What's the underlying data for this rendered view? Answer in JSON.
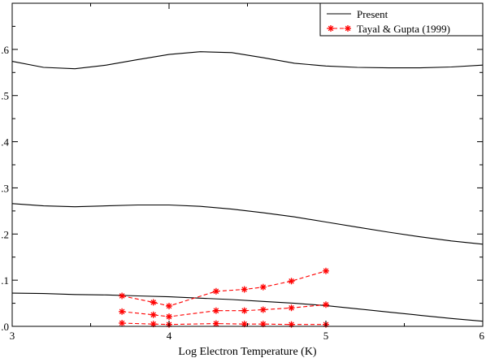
{
  "chart_data": {
    "type": "line",
    "title": "",
    "xlabel": "Log Electron Temperature (K)",
    "ylabel": "",
    "xlim": [
      3,
      6
    ],
    "ylim": [
      0,
      0.7
    ],
    "xticks": [
      3,
      4,
      5,
      6
    ],
    "yticks": [
      0,
      0.1,
      0.2,
      0.3,
      0.4,
      0.5,
      0.6
    ],
    "ytick_labels": [
      ".0",
      ".1",
      ".2",
      ".3",
      ".4",
      ".5",
      ".6"
    ],
    "grid": false,
    "legend_position": "top-right",
    "legend": [
      {
        "label": "Present",
        "color": "#000000",
        "style": "solid",
        "marker": "none"
      },
      {
        "label": "Tayal & Gupta (1999)",
        "color": "#ff0000",
        "style": "dashed",
        "marker": "asterisk"
      }
    ],
    "series": [
      {
        "name": "Present",
        "group": 0,
        "color": "#000000",
        "style": "solid",
        "marker": "none",
        "x": [
          3.0,
          3.2,
          3.4,
          3.6,
          3.8,
          4.0,
          4.2,
          4.4,
          4.6,
          4.8,
          5.0,
          5.2,
          5.4,
          5.6,
          5.8,
          6.0
        ],
        "y": [
          0.574,
          0.561,
          0.558,
          0.566,
          0.578,
          0.589,
          0.595,
          0.593,
          0.582,
          0.57,
          0.564,
          0.561,
          0.56,
          0.56,
          0.562,
          0.566
        ]
      },
      {
        "name": "Present",
        "group": 0,
        "color": "#000000",
        "style": "solid",
        "marker": "none",
        "x": [
          3.0,
          3.2,
          3.4,
          3.6,
          3.8,
          4.0,
          4.2,
          4.4,
          4.6,
          4.8,
          5.0,
          5.2,
          5.4,
          5.6,
          5.8,
          6.0
        ],
        "y": [
          0.266,
          0.261,
          0.259,
          0.261,
          0.263,
          0.263,
          0.26,
          0.254,
          0.246,
          0.237,
          0.226,
          0.215,
          0.204,
          0.194,
          0.185,
          0.178
        ]
      },
      {
        "name": "Present",
        "group": 0,
        "color": "#000000",
        "style": "solid",
        "marker": "none",
        "x": [
          3.0,
          3.2,
          3.4,
          3.6,
          3.8,
          4.0,
          4.2,
          4.4,
          4.6,
          4.8,
          5.0,
          5.2,
          5.4,
          5.6,
          5.8,
          6.0
        ],
        "y": [
          0.072,
          0.071,
          0.069,
          0.068,
          0.066,
          0.064,
          0.061,
          0.058,
          0.054,
          0.05,
          0.045,
          0.038,
          0.031,
          0.024,
          0.017,
          0.011
        ]
      },
      {
        "name": "Tayal & Gupta (1999)",
        "group": 1,
        "color": "#ff0000",
        "style": "dashed",
        "marker": "asterisk",
        "x": [
          3.7,
          3.9,
          4.0,
          4.3,
          4.48,
          4.6,
          4.78,
          5.0
        ],
        "y": [
          0.066,
          0.052,
          0.044,
          0.076,
          0.08,
          0.085,
          0.098,
          0.12
        ]
      },
      {
        "name": "Tayal & Gupta (1999)",
        "group": 1,
        "color": "#ff0000",
        "style": "dashed",
        "marker": "asterisk",
        "x": [
          3.7,
          3.9,
          4.0,
          4.3,
          4.48,
          4.6,
          4.78,
          5.0
        ],
        "y": [
          0.032,
          0.025,
          0.021,
          0.034,
          0.034,
          0.036,
          0.04,
          0.047
        ]
      },
      {
        "name": "Tayal & Gupta (1999)",
        "group": 1,
        "color": "#ff0000",
        "style": "dashed",
        "marker": "asterisk",
        "x": [
          3.7,
          3.9,
          4.0,
          4.3,
          4.48,
          4.6,
          4.78,
          5.0
        ],
        "y": [
          0.007,
          0.005,
          0.004,
          0.006,
          0.005,
          0.005,
          0.004,
          0.004
        ]
      }
    ]
  }
}
